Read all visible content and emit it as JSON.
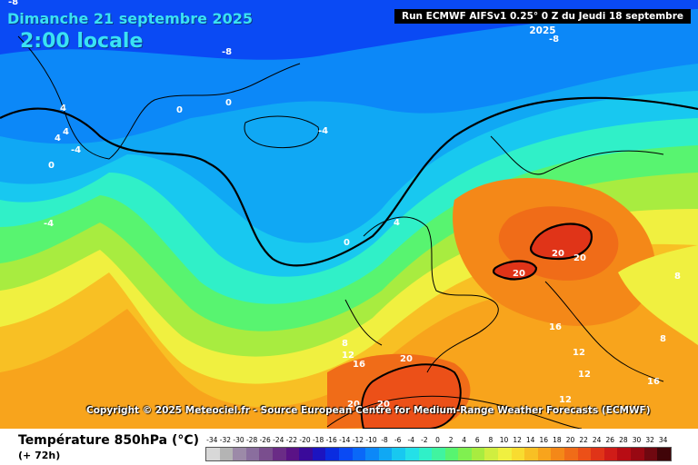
{
  "header": {
    "date": "Dimanche 21 septembre 2025",
    "time": "2:00 locale",
    "run": "Run ECMWF AIFSv1 0.25° 0 Z du Jeudi 18 septembre 2025"
  },
  "copyright": "Copyright © 2025 Meteociel.fr - Source European Centre for Medium-Range Weather Forecasts (ECMWF)",
  "legend": {
    "title": "Température 850hPa (°C)",
    "subtitle": "(+ 72h)",
    "scale_values": [
      "-34",
      "-32",
      "-30",
      "-28",
      "-26",
      "-24",
      "-22",
      "-20",
      "-18",
      "-16",
      "-14",
      "-12",
      "-10",
      "-8",
      "-6",
      "-4",
      "-2",
      "0",
      "2",
      "4",
      "6",
      "8",
      "10",
      "12",
      "14",
      "16",
      "18",
      "20",
      "22",
      "24",
      "26",
      "28",
      "30",
      "32",
      "34"
    ],
    "scale_colors": [
      "#d8d8d8",
      "#b4b4b4",
      "#9c8aa8",
      "#8a6e9e",
      "#7a4e8e",
      "#6a2c86",
      "#5a1286",
      "#3a0a9a",
      "#1c14c0",
      "#0a2ce0",
      "#0a4af4",
      "#0a68f8",
      "#0c88f8",
      "#10a8f4",
      "#18c8f0",
      "#24e0e8",
      "#30f0c8",
      "#40f4a0",
      "#58f470",
      "#80f050",
      "#a8ec40",
      "#d0ee40",
      "#f0f040",
      "#f8dc30",
      "#f8c024",
      "#f8a41c",
      "#f48818",
      "#f06c18",
      "#ec5018",
      "#e03418",
      "#d01c18",
      "#b80c14",
      "#980812",
      "#700810",
      "#400408"
    ]
  },
  "contour_labels": [
    {
      "text": "-8",
      "id": "a"
    },
    {
      "text": "-8",
      "id": "b"
    },
    {
      "text": "-8",
      "id": "c"
    },
    {
      "text": "-4",
      "id": "d"
    },
    {
      "text": "-4",
      "id": "e"
    },
    {
      "text": "0",
      "id": "f"
    },
    {
      "text": "0",
      "id": "g"
    },
    {
      "text": "0",
      "id": "h"
    },
    {
      "text": "4",
      "id": "i"
    },
    {
      "text": "4",
      "id": "j"
    },
    {
      "text": "4",
      "id": "k"
    },
    {
      "text": "20",
      "id": "l"
    },
    {
      "text": "20",
      "id": "m"
    },
    {
      "text": "20",
      "id": "n"
    },
    {
      "text": "8",
      "id": "o"
    },
    {
      "text": "8",
      "id": "p"
    },
    {
      "text": "12",
      "id": "q"
    },
    {
      "text": "12",
      "id": "r"
    },
    {
      "text": "16",
      "id": "s"
    },
    {
      "text": "16",
      "id": "t"
    },
    {
      "text": "16",
      "id": "u"
    },
    {
      "text": "20",
      "id": "v"
    },
    {
      "text": "20",
      "id": "w"
    },
    {
      "text": "20",
      "id": "x"
    },
    {
      "text": "12",
      "id": "y"
    },
    {
      "text": "12",
      "id": "z"
    },
    {
      "text": "8",
      "id": "aa"
    },
    {
      "text": "4",
      "id": "ab"
    },
    {
      "text": "-4",
      "id": "ac"
    },
    {
      "text": "0",
      "id": "ad"
    }
  ]
}
